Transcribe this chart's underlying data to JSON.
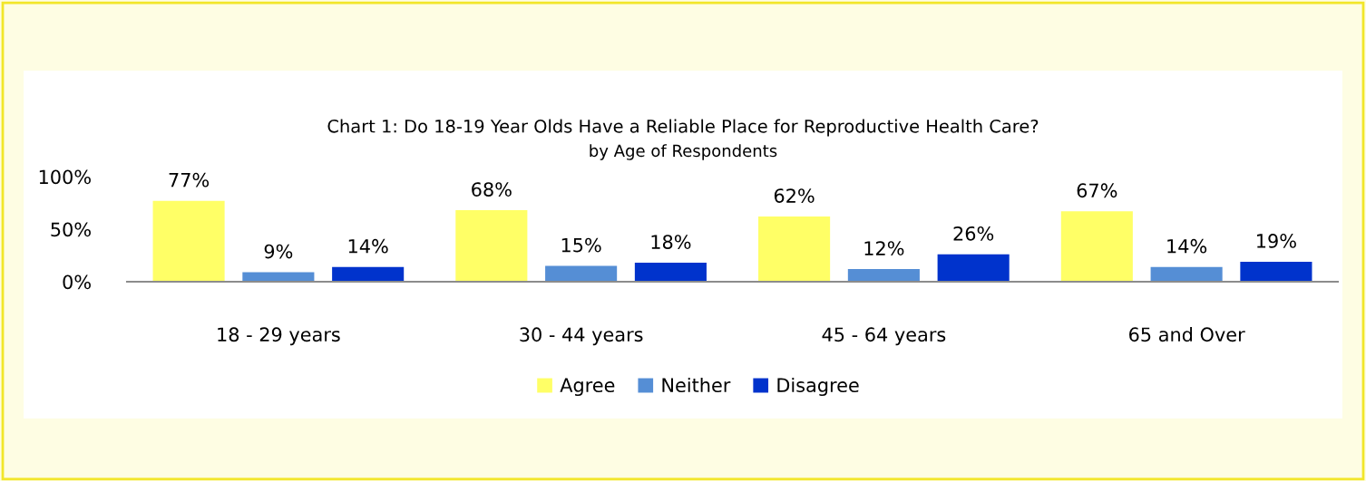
{
  "chart_data": {
    "type": "bar",
    "title": "Chart 1: Do 18-19 Year Olds Have a Reliable Place for Reproductive Health Care?",
    "subtitle": "by Age of Respondents",
    "categories": [
      "18 - 29 years",
      "30 - 44 years",
      "45 - 64 years",
      "65 and Over"
    ],
    "series": [
      {
        "name": "Agree",
        "color": "#ffff66",
        "values": [
          77,
          68,
          62,
          67
        ],
        "value_labels": [
          "77%",
          "68%",
          "62%",
          "67%"
        ]
      },
      {
        "name": "Neither",
        "color": "#558ed5",
        "values": [
          9,
          15,
          12,
          14
        ],
        "value_labels": [
          "9%",
          "15%",
          "12%",
          "14%"
        ]
      },
      {
        "name": "Disagree",
        "color": "#0033cc",
        "values": [
          14,
          18,
          26,
          19
        ],
        "value_labels": [
          "14%",
          "18%",
          "26%",
          "19%"
        ]
      }
    ],
    "ylim": [
      0,
      100
    ],
    "yticks": [
      {
        "value": 0,
        "label": "0%"
      },
      {
        "value": 50,
        "label": "50%"
      },
      {
        "value": 100,
        "label": "100%"
      }
    ],
    "grid": false,
    "legend": "bottom"
  }
}
